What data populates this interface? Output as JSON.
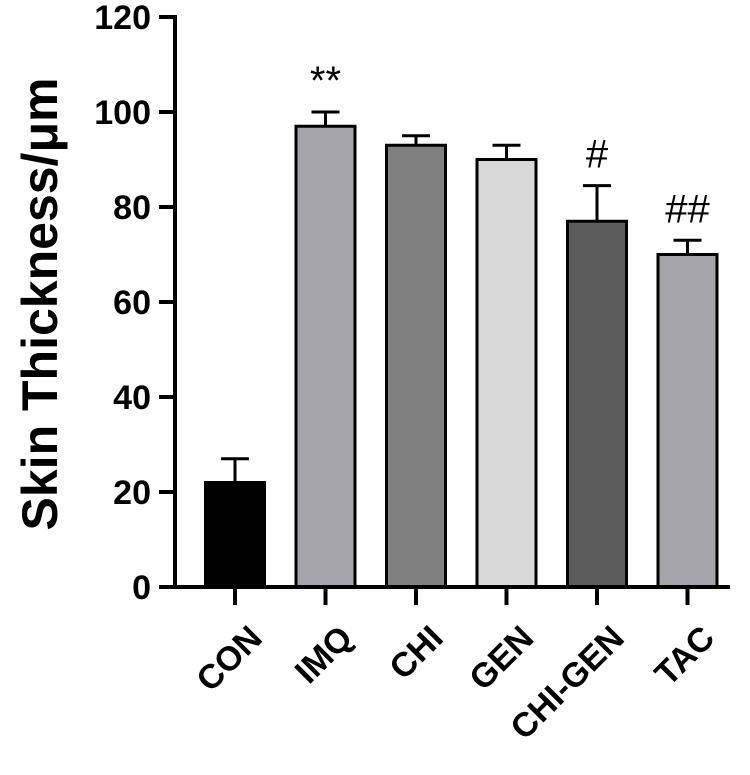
{
  "chart_data": {
    "type": "bar",
    "title": "",
    "xlabel": "",
    "ylabel": "Skin Thickness/μm",
    "ylim": [
      0,
      120
    ],
    "yticks": [
      0,
      20,
      40,
      60,
      80,
      100,
      120
    ],
    "grid": false,
    "categories": [
      "CON",
      "IMQ",
      "CHI",
      "GEN",
      "CHI-GEN",
      "TAC"
    ],
    "values": [
      22,
      97,
      93,
      90,
      77,
      70
    ],
    "errors": [
      5,
      3,
      2,
      3,
      7.5,
      3
    ],
    "annotations": [
      "",
      "**",
      "",
      "",
      "#",
      "##"
    ],
    "colors": [
      "#000000",
      "#a4a4aa",
      "#808080",
      "#d8d8d8",
      "#5c5c5c",
      "#a4a4aa"
    ]
  }
}
